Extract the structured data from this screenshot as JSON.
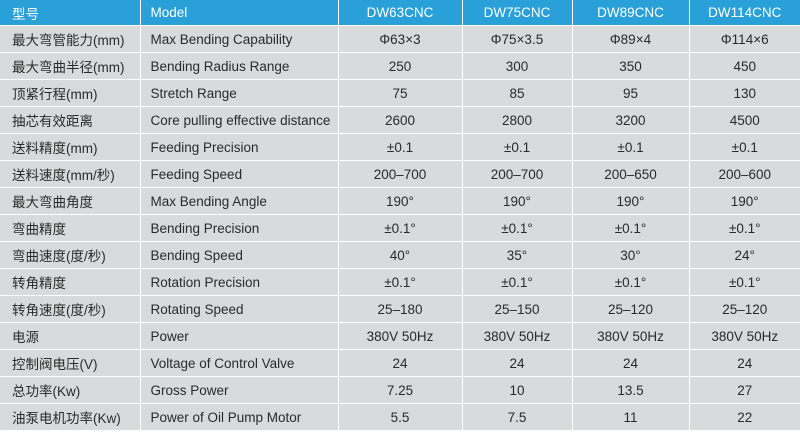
{
  "header": {
    "label_cn": "型号",
    "label_en": "Model",
    "models": [
      "DW63CNC",
      "DW75CNC",
      "DW89CNC",
      "DW114CNC"
    ]
  },
  "rows": [
    {
      "cn": "最大弯管能力(mm)",
      "en": "Max Bending Capability",
      "values": [
        "Φ63×3",
        "Φ75×3.5",
        "Φ89×4",
        "Φ114×6"
      ]
    },
    {
      "cn": "最大弯曲半径(mm)",
      "en": "Bending Radius Range",
      "values": [
        "250",
        "300",
        "350",
        "450"
      ]
    },
    {
      "cn": "顶紧行程(mm)",
      "en": "Stretch Range",
      "values": [
        "75",
        "85",
        "95",
        "130"
      ]
    },
    {
      "cn": "抽芯有效距离",
      "en": "Core pulling effective distance",
      "values": [
        "2600",
        "2800",
        "3200",
        "4500"
      ]
    },
    {
      "cn": "送料精度(mm)",
      "en": "Feeding Precision",
      "values": [
        "±0.1",
        "±0.1",
        "±0.1",
        "±0.1"
      ]
    },
    {
      "cn": "送料速度(mm/秒)",
      "en": "Feeding Speed",
      "values": [
        "200–700",
        "200–700",
        "200–650",
        "200–600"
      ]
    },
    {
      "cn": "最大弯曲角度",
      "en": "Max Bending Angle",
      "values": [
        "190°",
        "190°",
        "190°",
        "190°"
      ]
    },
    {
      "cn": "弯曲精度",
      "en": "Bending Precision",
      "values": [
        "±0.1°",
        "±0.1°",
        "±0.1°",
        "±0.1°"
      ]
    },
    {
      "cn": "弯曲速度(度/秒)",
      "en": "Bending Speed",
      "values": [
        "40°",
        "35°",
        "30°",
        "24°"
      ]
    },
    {
      "cn": "转角精度",
      "en": "Rotation Precision",
      "values": [
        "±0.1°",
        "±0.1°",
        "±0.1°",
        "±0.1°"
      ]
    },
    {
      "cn": "转角速度(度/秒)",
      "en": "Rotating Speed",
      "values": [
        "25–180",
        "25–150",
        "25–120",
        "25–120"
      ]
    },
    {
      "cn": "电源",
      "en": "Power",
      "values": [
        "380V  50Hz",
        "380V  50Hz",
        "380V  50Hz",
        "380V  50Hz"
      ]
    },
    {
      "cn": "控制阀电压(V)",
      "en": "Voltage of Control Valve",
      "values": [
        "24",
        "24",
        "24",
        "24"
      ]
    },
    {
      "cn": "总功率(Kw)",
      "en": "Gross Power",
      "values": [
        "7.25",
        "10",
        "13.5",
        "27"
      ]
    },
    {
      "cn": "油泵电机功率(Kw)",
      "en": "Power of Oil Pump Motor",
      "values": [
        "5.5",
        "7.5",
        "11",
        "22"
      ]
    }
  ]
}
